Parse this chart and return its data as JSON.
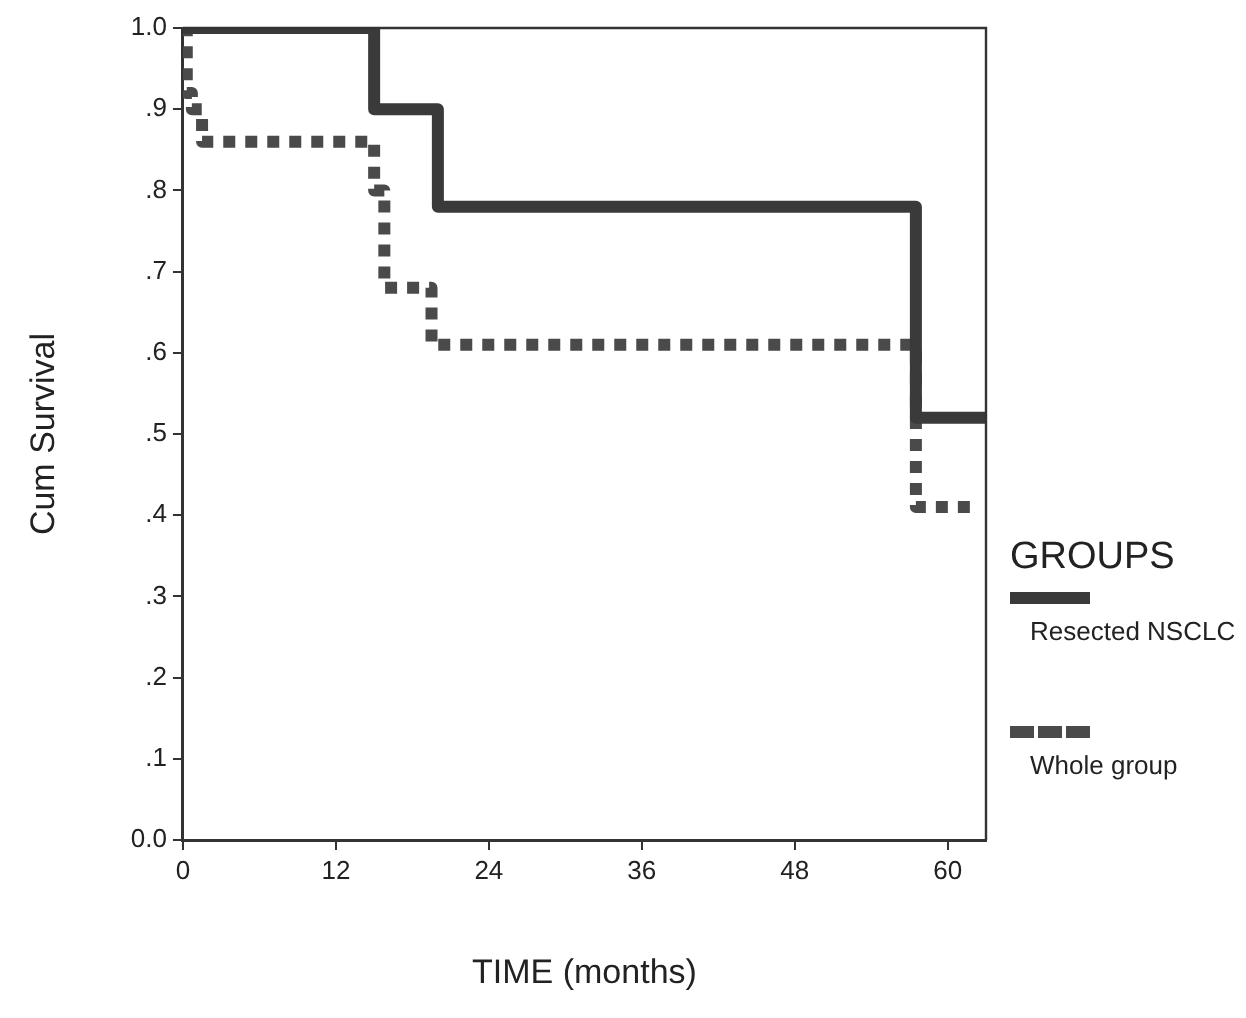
{
  "chart_data": {
    "type": "step",
    "xlabel": "TIME (months)",
    "ylabel": "Cum Survival",
    "legend_title": "GROUPS",
    "legend": "right",
    "grid": false,
    "marker": "none",
    "xlim": [
      0,
      63
    ],
    "xticks": [
      0,
      12,
      24,
      36,
      48,
      60
    ],
    "ylim": [
      0,
      1
    ],
    "yticks": [
      {
        "value": 0,
        "label": "0.0"
      },
      {
        "value": 0.1,
        "label": ".1"
      },
      {
        "value": 0.2,
        "label": ".2"
      },
      {
        "value": 0.3,
        "label": ".3"
      },
      {
        "value": 0.4,
        "label": ".4"
      },
      {
        "value": 0.5,
        "label": ".5"
      },
      {
        "value": 0.6,
        "label": ".6"
      },
      {
        "value": 0.7,
        "label": ".7"
      },
      {
        "value": 0.8,
        "label": ".8"
      },
      {
        "value": 0.9,
        "label": ".9"
      },
      {
        "value": 1,
        "label": "1.0"
      }
    ],
    "series": [
      {
        "name": "Resected NSCLC",
        "color": "#3a3a3a",
        "line_style": "solid",
        "x": [
          0,
          15,
          20,
          57.5,
          63
        ],
        "values": [
          1,
          0.9,
          0.78,
          0.52,
          0.52
        ]
      },
      {
        "name": "Whole group",
        "color": "#4a4a4a",
        "line_style": "dashed",
        "x": [
          0,
          0.3,
          0.7,
          1.5,
          15,
          15.8,
          19.5,
          57.5,
          62
        ],
        "values": [
          1,
          0.92,
          0.9,
          0.86,
          0.8,
          0.68,
          0.61,
          0.41,
          0.41
        ]
      }
    ]
  }
}
